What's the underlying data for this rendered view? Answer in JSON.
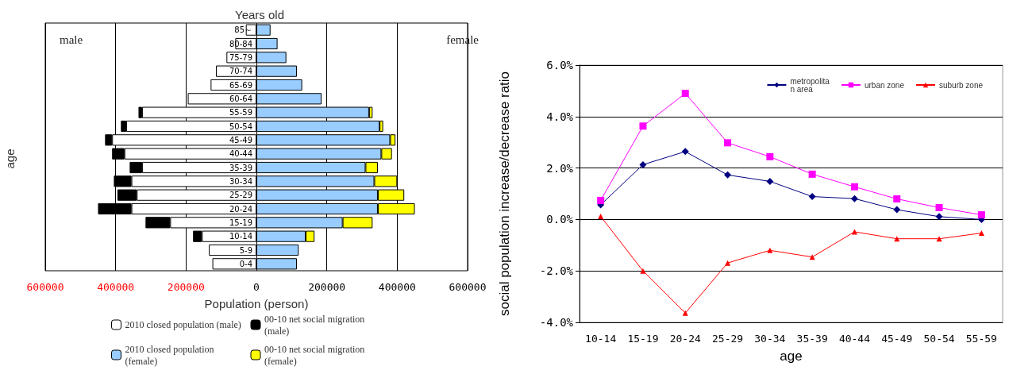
{
  "chart_data": [
    {
      "type": "bar",
      "orientation": "horizontal",
      "stacked": true,
      "title": "Years old",
      "xlabel": "Population (person)",
      "ylabel": "age",
      "categories": [
        "85～",
        "80-84",
        "75-79",
        "70-74",
        "65-69",
        "60-64",
        "55-59",
        "50-54",
        "45-49",
        "40-44",
        "35-39",
        "30-34",
        "25-29",
        "20-24",
        "15-19",
        "10-14",
        "5-9",
        "0-4"
      ],
      "series": [
        {
          "name": "2010 closed population (male)",
          "color": "#ffffff",
          "values": [
            -30000,
            -60000,
            -85000,
            -115000,
            -130000,
            -195000,
            -325000,
            -370000,
            -410000,
            -375000,
            -325000,
            -355000,
            -340000,
            -355000,
            -245000,
            -155000,
            -135000,
            -125000
          ]
        },
        {
          "name": "00-10 net social migration (male)",
          "color": "#000000",
          "values": [
            null,
            null,
            null,
            null,
            null,
            null,
            -10000,
            -15000,
            -20000,
            -35000,
            -35000,
            -50000,
            -55000,
            -95000,
            -70000,
            -25000,
            null,
            null
          ]
        },
        {
          "name": "2010 closed population (female)",
          "color": "#99ccff",
          "values": [
            40000,
            60000,
            85000,
            115000,
            130000,
            185000,
            320000,
            350000,
            380000,
            355000,
            310000,
            335000,
            345000,
            345000,
            245000,
            140000,
            120000,
            115000
          ]
        },
        {
          "name": "00-10 net social migration (female)",
          "color": "#ffff00",
          "values": [
            null,
            null,
            null,
            null,
            null,
            null,
            10000,
            10000,
            15000,
            30000,
            35000,
            65000,
            75000,
            105000,
            85000,
            25000,
            null,
            null
          ]
        }
      ],
      "xlim": [
        -600000,
        600000
      ],
      "xticks": [
        {
          "value": -600000,
          "label": "600000"
        },
        {
          "value": -400000,
          "label": "400000"
        },
        {
          "value": -200000,
          "label": "200000"
        },
        0,
        200000,
        400000,
        600000
      ],
      "grid": "x",
      "legend": "bottom",
      "annotations": [
        "male",
        "female"
      ]
    },
    {
      "type": "line",
      "xlabel": "age",
      "ylabel": "social population increase/decrease ratio",
      "categories": [
        "10-14",
        "15-19",
        "20-24",
        "25-29",
        "30-34",
        "35-39",
        "40-44",
        "45-49",
        "50-54",
        "55-59"
      ],
      "series": [
        {
          "name": "metropolitan area",
          "color": "#000080",
          "marker": "diamond",
          "values": [
            0.57,
            2.13,
            2.64,
            1.73,
            1.48,
            0.89,
            0.81,
            0.38,
            0.11,
            0.0
          ]
        },
        {
          "name": "urban zone",
          "color": "#ff00ff",
          "marker": "square",
          "values": [
            0.74,
            3.63,
            4.9,
            2.98,
            2.44,
            1.76,
            1.27,
            0.8,
            0.46,
            0.18
          ]
        },
        {
          "name": "suburb zone",
          "color": "#ff0000",
          "marker": "triangle",
          "values": [
            0.12,
            -2.0,
            -3.64,
            -1.69,
            -1.2,
            -1.46,
            -0.48,
            -0.75,
            -0.75,
            -0.53
          ]
        }
      ],
      "ylim": [
        -4,
        6
      ],
      "yticks": [
        {
          "value": -4,
          "label": "-4.0%"
        },
        {
          "value": -2,
          "label": "-2.0%"
        },
        {
          "value": 0,
          "label": "0.0%"
        },
        {
          "value": 2,
          "label": "2.0%"
        },
        {
          "value": 4,
          "label": "4.0%"
        },
        {
          "value": 6,
          "label": "6.0%"
        }
      ],
      "grid": "y",
      "legend": "top right"
    }
  ]
}
